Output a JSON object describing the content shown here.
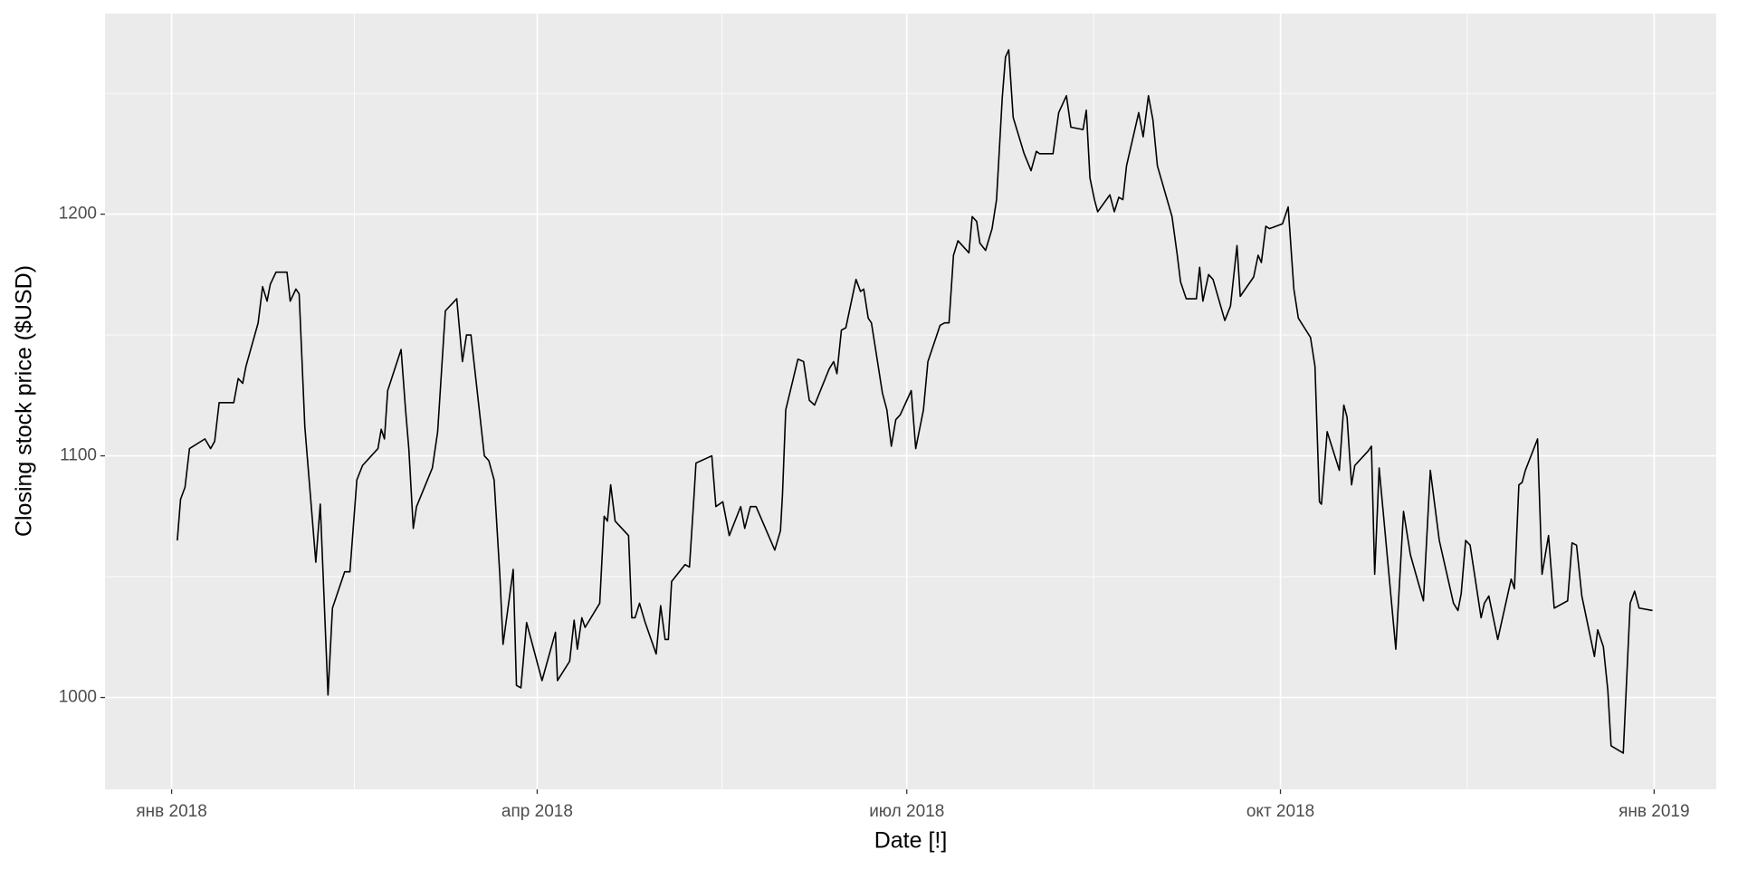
{
  "chart_data": {
    "type": "line",
    "x_label": "Date [!]",
    "y_label": "Closing stock price ($USD)",
    "x": [
      1.4,
      2.2,
      3.3,
      4.4,
      8.2,
      9.6,
      10.6,
      11.7,
      15.3,
      16.4,
      17.5,
      18.3,
      21.3,
      22.4,
      23.5,
      24.3,
      25.7,
      28.4,
      29.2,
      30.6,
      31.4,
      32.8,
      35.5,
      36.6,
      38.5,
      39.6,
      42.6,
      43.9,
      45.6,
      47,
      50.8,
      51.6,
      52.4,
      53.2,
      56.5,
      57.6,
      58.4,
      59.5,
      60.3,
      64.2,
      65.5,
      67.4,
      70.2,
      71.6,
      72.6,
      73.7,
      77,
      78.1,
      79.4,
      80.8,
      81.6,
      84.1,
      84.9,
      86,
      87.4,
      91.2,
      94.5,
      95,
      98,
      99.1,
      99.9,
      101,
      101.8,
      105.4,
      106.5,
      107.3,
      108.1,
      109.2,
      112.5,
      113.3,
      114.1,
      115.2,
      116.6,
      119.3,
      120.4,
      121.5,
      122.3,
      123.1,
      126.4,
      127.5,
      128.6,
      129.1,
      133,
      134,
      135.7,
      137.3,
      140.1,
      141.1,
      142.5,
      143.9,
      148.5,
      149.9,
      150.4,
      151.2,
      154.2,
      155.6,
      157,
      158.3,
      161.9,
      163,
      163.8,
      164.9,
      166,
      168.5,
      169.6,
      170.4,
      171.5,
      172.3,
      175,
      176.1,
      177.2,
      178.3,
      179.4,
      182.1,
      183.2,
      185.1,
      186.2,
      189.2,
      190.3,
      191.4,
      192.5,
      193.6,
      196.3,
      197.1,
      198.2,
      199,
      200.4,
      202,
      203.1,
      204.5,
      205.3,
      206.1,
      207.2,
      209.9,
      211.6,
      212.9,
      213.7,
      217,
      218.4,
      220.3,
      221.4,
      224.4,
      225.2,
      226.1,
      227.2,
      228,
      231,
      232.1,
      233.2,
      234.2,
      235.1,
      238.1,
      239.2,
      240.5,
      241.6,
      242.7,
      246.3,
      247.6,
      248.4,
      249.8,
      252.3,
      253.1,
      253.9,
      255.3,
      256.4,
      259.3,
      260.7,
      262.3,
      263.1,
      266.4,
      267.5,
      268.3,
      269.4,
      270.3,
      273.5,
      274.9,
      276.3,
      277.4,
      280.4,
      281.5,
      282.6,
      283.1,
      284.5,
      287.5,
      288.6,
      289.4,
      290.5,
      291.3,
      294.6,
      295.4,
      296.2,
      297.3,
      301.4,
      303.3,
      305,
      308.2,
      309.9,
      312.1,
      315.6,
      316.7,
      317.5,
      318.6,
      319.7,
      322.4,
      323.2,
      324.3,
      326.5,
      329.8,
      330.6,
      331.7,
      332.5,
      333.3,
      336.3,
      337.4,
      339,
      340.4,
      343.7,
      344.8,
      345.9,
      347.2,
      350.3,
      351.1,
      352.5,
      353.6,
      354.4,
      357.4,
      359.1,
      360.2,
      361.3,
      364.6
    ],
    "series": [
      {
        "color": "#000000",
        "values": [
          1065,
          1082,
          1087,
          1103,
          1107,
          1103,
          1106,
          1122,
          1122,
          1132,
          1130,
          1137,
          1155,
          1170,
          1164,
          1171,
          1176,
          1176,
          1164,
          1169,
          1167,
          1112,
          1056,
          1080,
          1001,
          1037,
          1052,
          1052,
          1090,
          1096,
          1103,
          1111,
          1107,
          1127,
          1144,
          1119,
          1103,
          1070,
          1079,
          1095,
          1110,
          1160,
          1165,
          1139,
          1150,
          1150,
          1100,
          1098,
          1090,
          1051,
          1022,
          1053,
          1005,
          1004,
          1031,
          1007,
          1027,
          1007,
          1015,
          1032,
          1020,
          1033,
          1029,
          1039,
          1075,
          1073,
          1088,
          1073,
          1067,
          1033,
          1033,
          1039,
          1031,
          1018,
          1038,
          1024,
          1024,
          1048,
          1055,
          1054,
          1083,
          1097,
          1100,
          1079,
          1081,
          1067,
          1079,
          1070,
          1079,
          1079,
          1061,
          1069,
          1084,
          1119,
          1140,
          1139,
          1123,
          1121,
          1136,
          1139,
          1134,
          1152,
          1153,
          1173,
          1168,
          1169,
          1157,
          1155,
          1126,
          1119,
          1104,
          1115,
          1117,
          1127,
          1103,
          1119,
          1139,
          1154,
          1155,
          1155,
          1183,
          1189,
          1184,
          1199,
          1197,
          1188,
          1185,
          1194,
          1206,
          1248,
          1265,
          1268,
          1240,
          1225,
          1218,
          1226,
          1225,
          1225,
          1242,
          1249,
          1236,
          1235,
          1243,
          1215,
          1206,
          1201,
          1208,
          1201,
          1207,
          1206,
          1220,
          1242,
          1232,
          1249,
          1239,
          1220,
          1199,
          1183,
          1172,
          1165,
          1165,
          1178,
          1164,
          1175,
          1173,
          1156,
          1162,
          1187,
          1166,
          1174,
          1183,
          1180,
          1195,
          1194,
          1196,
          1203,
          1169,
          1157,
          1149,
          1137,
          1081,
          1080,
          1110,
          1094,
          1121,
          1116,
          1088,
          1096,
          1102,
          1104,
          1051,
          1095,
          1020,
          1077,
          1059,
          1040,
          1094,
          1065,
          1039,
          1036,
          1043,
          1065,
          1063,
          1033,
          1039,
          1042,
          1024,
          1049,
          1045,
          1088,
          1089,
          1094,
          1107,
          1051,
          1067,
          1037,
          1040,
          1064,
          1063,
          1042,
          1017,
          1028,
          1021,
          1003,
          980,
          977,
          1039,
          1044,
          1037,
          1036
        ]
      }
    ],
    "xlim": [
      -16.4,
      380.3
    ],
    "xticks": [
      {
        "value": 0,
        "label": "янв 2018"
      },
      {
        "value": 90,
        "label": "апр 2018"
      },
      {
        "value": 181,
        "label": "июл 2018"
      },
      {
        "value": 273,
        "label": "окт 2018"
      },
      {
        "value": 365,
        "label": "янв 2019"
      }
    ],
    "ylim": [
      962,
      1283
    ],
    "yticks": [
      1000,
      1100,
      1200
    ],
    "grid": true,
    "panel_color": "#ebebeb"
  }
}
